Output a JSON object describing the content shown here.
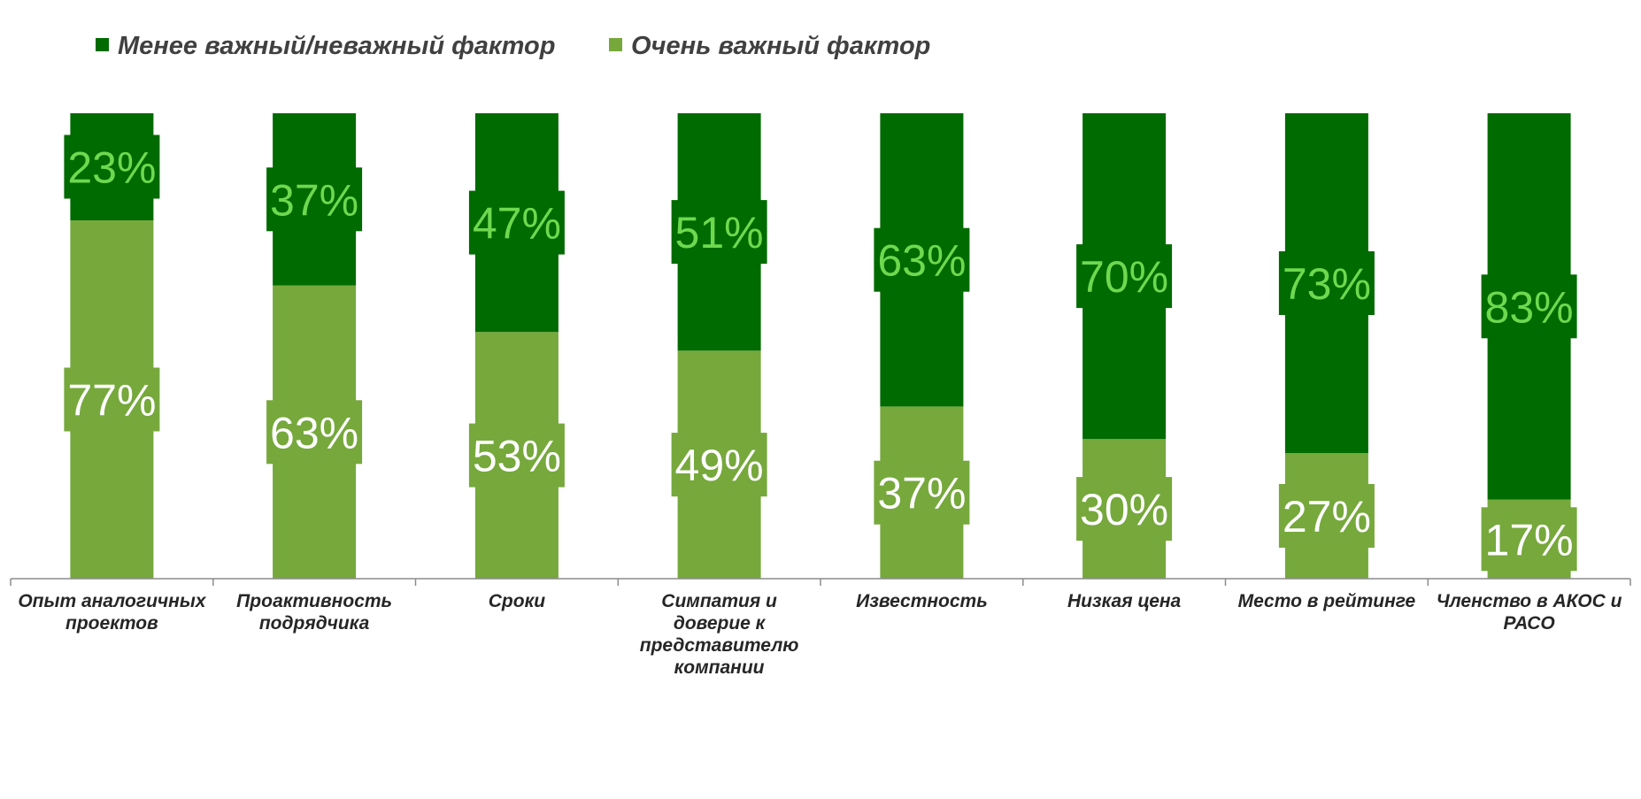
{
  "chart_data": {
    "type": "bar",
    "stacked": true,
    "percent_stacked": true,
    "categories": [
      "Опыт аналогичных проектов",
      "Проактивность подрядчика",
      "Сроки",
      "Симпатия и доверие к представителю компании",
      "Известность",
      "Низкая цена",
      "Место в  рейтинге",
      "Членство в АКОС и РАСО"
    ],
    "category_lines": [
      [
        "Опыт аналогичных",
        "проектов"
      ],
      [
        "Проактивность",
        "подрядчика"
      ],
      [
        "Сроки"
      ],
      [
        "Симпатия и",
        "доверие к",
        "представителю",
        "компании"
      ],
      [
        "Известность"
      ],
      [
        "Низкая цена"
      ],
      [
        "Место в  рейтинге"
      ],
      [
        "Членство в АКОС и",
        "РАСО"
      ]
    ],
    "series": [
      {
        "name": "Очень важный фактор",
        "values": [
          77,
          63,
          53,
          49,
          37,
          30,
          27,
          17
        ],
        "labels": [
          "77%",
          "63%",
          "53%",
          "49%",
          "37%",
          "30%",
          "27%",
          "17%"
        ],
        "color": "#76A83C",
        "label_color": "#FFFFFF"
      },
      {
        "name": "Менее важный/неважный фактор",
        "values": [
          23,
          37,
          47,
          51,
          63,
          70,
          73,
          83
        ],
        "labels": [
          "23%",
          "37%",
          "47%",
          "51%",
          "63%",
          "70%",
          "73%",
          "83%"
        ],
        "color": "#006B00",
        "label_color": "#6ED94F"
      }
    ],
    "legend_order": [
      "Менее важный/неважный фактор",
      "Очень важный фактор"
    ],
    "legend_position": "top",
    "ylim": [
      0,
      100
    ],
    "grid": false,
    "y_axis_visible": false
  }
}
